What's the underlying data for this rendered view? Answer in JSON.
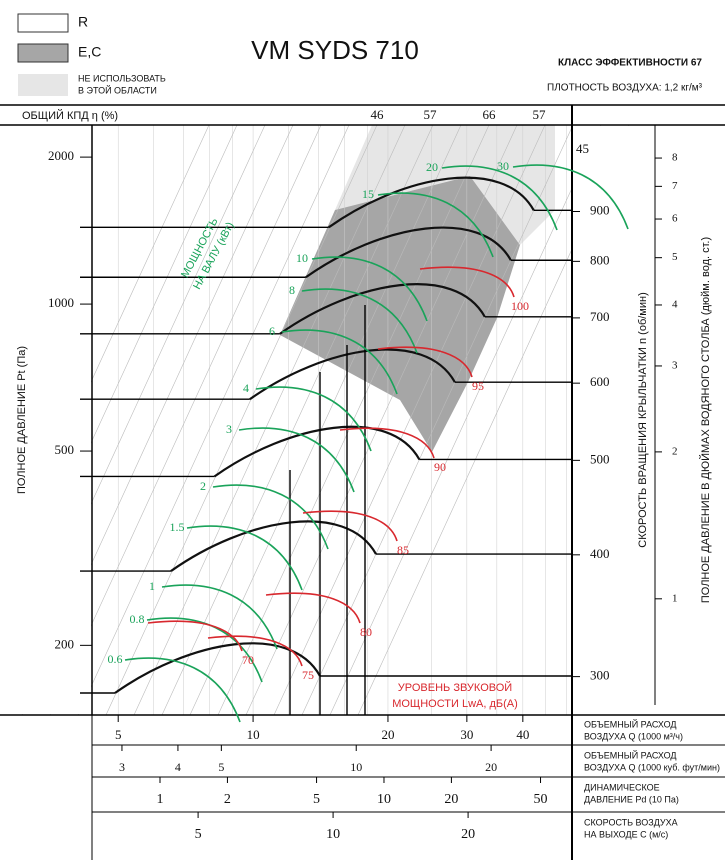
{
  "chart_data": {
    "type": "fan-chart",
    "title": "VM SYDS 710",
    "efficiency_class": "КЛАСС ЭФФЕКТИВНОСТИ 67",
    "air_density": "ПЛОТНОСТЬ ВОЗДУХА: 1,2 кг/м³",
    "legend": [
      {
        "label": "R",
        "color": "#ffffff"
      },
      {
        "label": "E,C",
        "color": "#a6a6a6"
      },
      {
        "lines": [
          "НЕ ИСПОЛЬЗОВАТЬ",
          "В ЭТОЙ ОБЛАСТИ"
        ],
        "color": "#e6e6e6"
      }
    ],
    "efficiency": {
      "label": "ОБЩИЙ КПД η (%)",
      "values": [
        46,
        57,
        66,
        57
      ],
      "top_right": 45
    },
    "ylabel": "ПОЛНОЕ ДАВЛЕНИЕ Pt (Па)",
    "log_scale": true,
    "ylim": [
      144,
      2327
    ],
    "yticks": [
      200,
      500,
      1000,
      2000
    ],
    "xlim": [
      4.37,
      51.5
    ],
    "xticks": [
      5,
      10,
      20,
      30,
      40
    ],
    "xlabel": [
      "ОБЪЕМНЫЙ РАСХОД",
      "ВОЗДУХА Q (1000 м³/ч)"
    ],
    "cfm_axis": {
      "label": [
        "ОБЪЕМНЫЙ РАСХОД",
        "ВОЗДУХА Q (1000 куб. фут/мин)"
      ],
      "xlim": [
        2.572,
        30.31
      ],
      "xticks": [
        3,
        4,
        5,
        10,
        20
      ]
    },
    "dynamic_pressure_axis": {
      "label": [
        "ДИНАМИЧЕСКОЕ",
        "ДАВЛЕНИЕ Pd (10 Па)"
      ],
      "xlim": [
        0.497,
        69.1
      ],
      "xticks": [
        1,
        2,
        5,
        10,
        20,
        50
      ]
    },
    "velocity_axis": {
      "label": [
        "СКОРОСТЬ ВОЗДУХА",
        "НА ВЫХОДЕ C (м/с)"
      ],
      "xlim": [
        2.9,
        34.1
      ],
      "xticks": [
        5,
        10,
        20
      ]
    },
    "rpm_axis": {
      "label": "СКОРОСТЬ ВРАЩЕНИЯ КРЫЛЬЧАТКИ n (об/мин)",
      "ylim": [
        274,
        1104
      ],
      "yticks": [
        300,
        400,
        500,
        600,
        700,
        800,
        900
      ]
    },
    "inch_axis": {
      "label": "ПОЛНОЕ ДАВЛЕНИЕ В ДЮЙМАХ ВОДЯНОГО СТОЛБА (дюйм. вод. ст.)",
      "ylim": [
        0.578,
        9.35
      ],
      "yticks": [
        1,
        2,
        3,
        4,
        5,
        6,
        7,
        8
      ]
    },
    "shaft_power": {
      "label": [
        "МОЩНОСТЬ",
        "НА ВАЛУ (кВт)"
      ],
      "color": "#1aa35a",
      "values": [
        0.6,
        0.8,
        1,
        1.5,
        2,
        3,
        4,
        6,
        8,
        10,
        15,
        20,
        30
      ]
    },
    "sound_power": {
      "label": [
        "УРОВЕНЬ ЗВУКОВОЙ",
        "МОЩНОСТИ LwA, дБ(A)"
      ],
      "color": "#d8282e",
      "values": [
        70,
        75,
        80,
        85,
        90,
        95,
        100
      ]
    }
  }
}
